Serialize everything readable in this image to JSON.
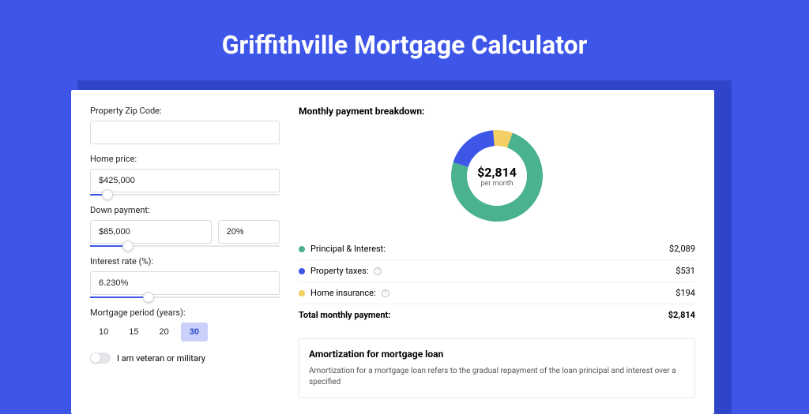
{
  "page": {
    "title": "Griffithville Mortgage Calculator",
    "bg_color": "#3e56e8",
    "shadow_color": "#2e44c9"
  },
  "form": {
    "zip": {
      "label": "Property Zip Code:",
      "value": ""
    },
    "home_price": {
      "label": "Home price:",
      "value": "$425,000",
      "slider_pct": 9
    },
    "down_payment": {
      "label": "Down payment:",
      "amount": "$85,000",
      "pct": "20%",
      "slider_pct": 20
    },
    "interest_rate": {
      "label": "Interest rate (%):",
      "value": "6.230%",
      "slider_pct": 31
    },
    "period": {
      "label": "Mortgage period (years):",
      "options": [
        "10",
        "15",
        "20",
        "30"
      ],
      "active_index": 3
    },
    "veteran": {
      "label": "I am veteran or military",
      "enabled": false
    }
  },
  "breakdown": {
    "title": "Monthly payment breakdown:",
    "center_value": "$2,814",
    "center_label": "per month",
    "items": [
      {
        "label": "Principal & Interest:",
        "value": "$2,089",
        "color": "#4bb28f",
        "pct": 74.2,
        "info": false
      },
      {
        "label": "Property taxes:",
        "value": "$531",
        "color": "#3e56e8",
        "pct": 18.9,
        "info": true
      },
      {
        "label": "Home insurance:",
        "value": "$194",
        "color": "#f4cf63",
        "pct": 6.9,
        "info": true
      }
    ],
    "total_label": "Total monthly payment:",
    "total_value": "$2,814"
  },
  "amort": {
    "title": "Amortization for mortgage loan",
    "text": "Amortization for a mortgage loan refers to the gradual repayment of the loan principal and interest over a specified"
  }
}
